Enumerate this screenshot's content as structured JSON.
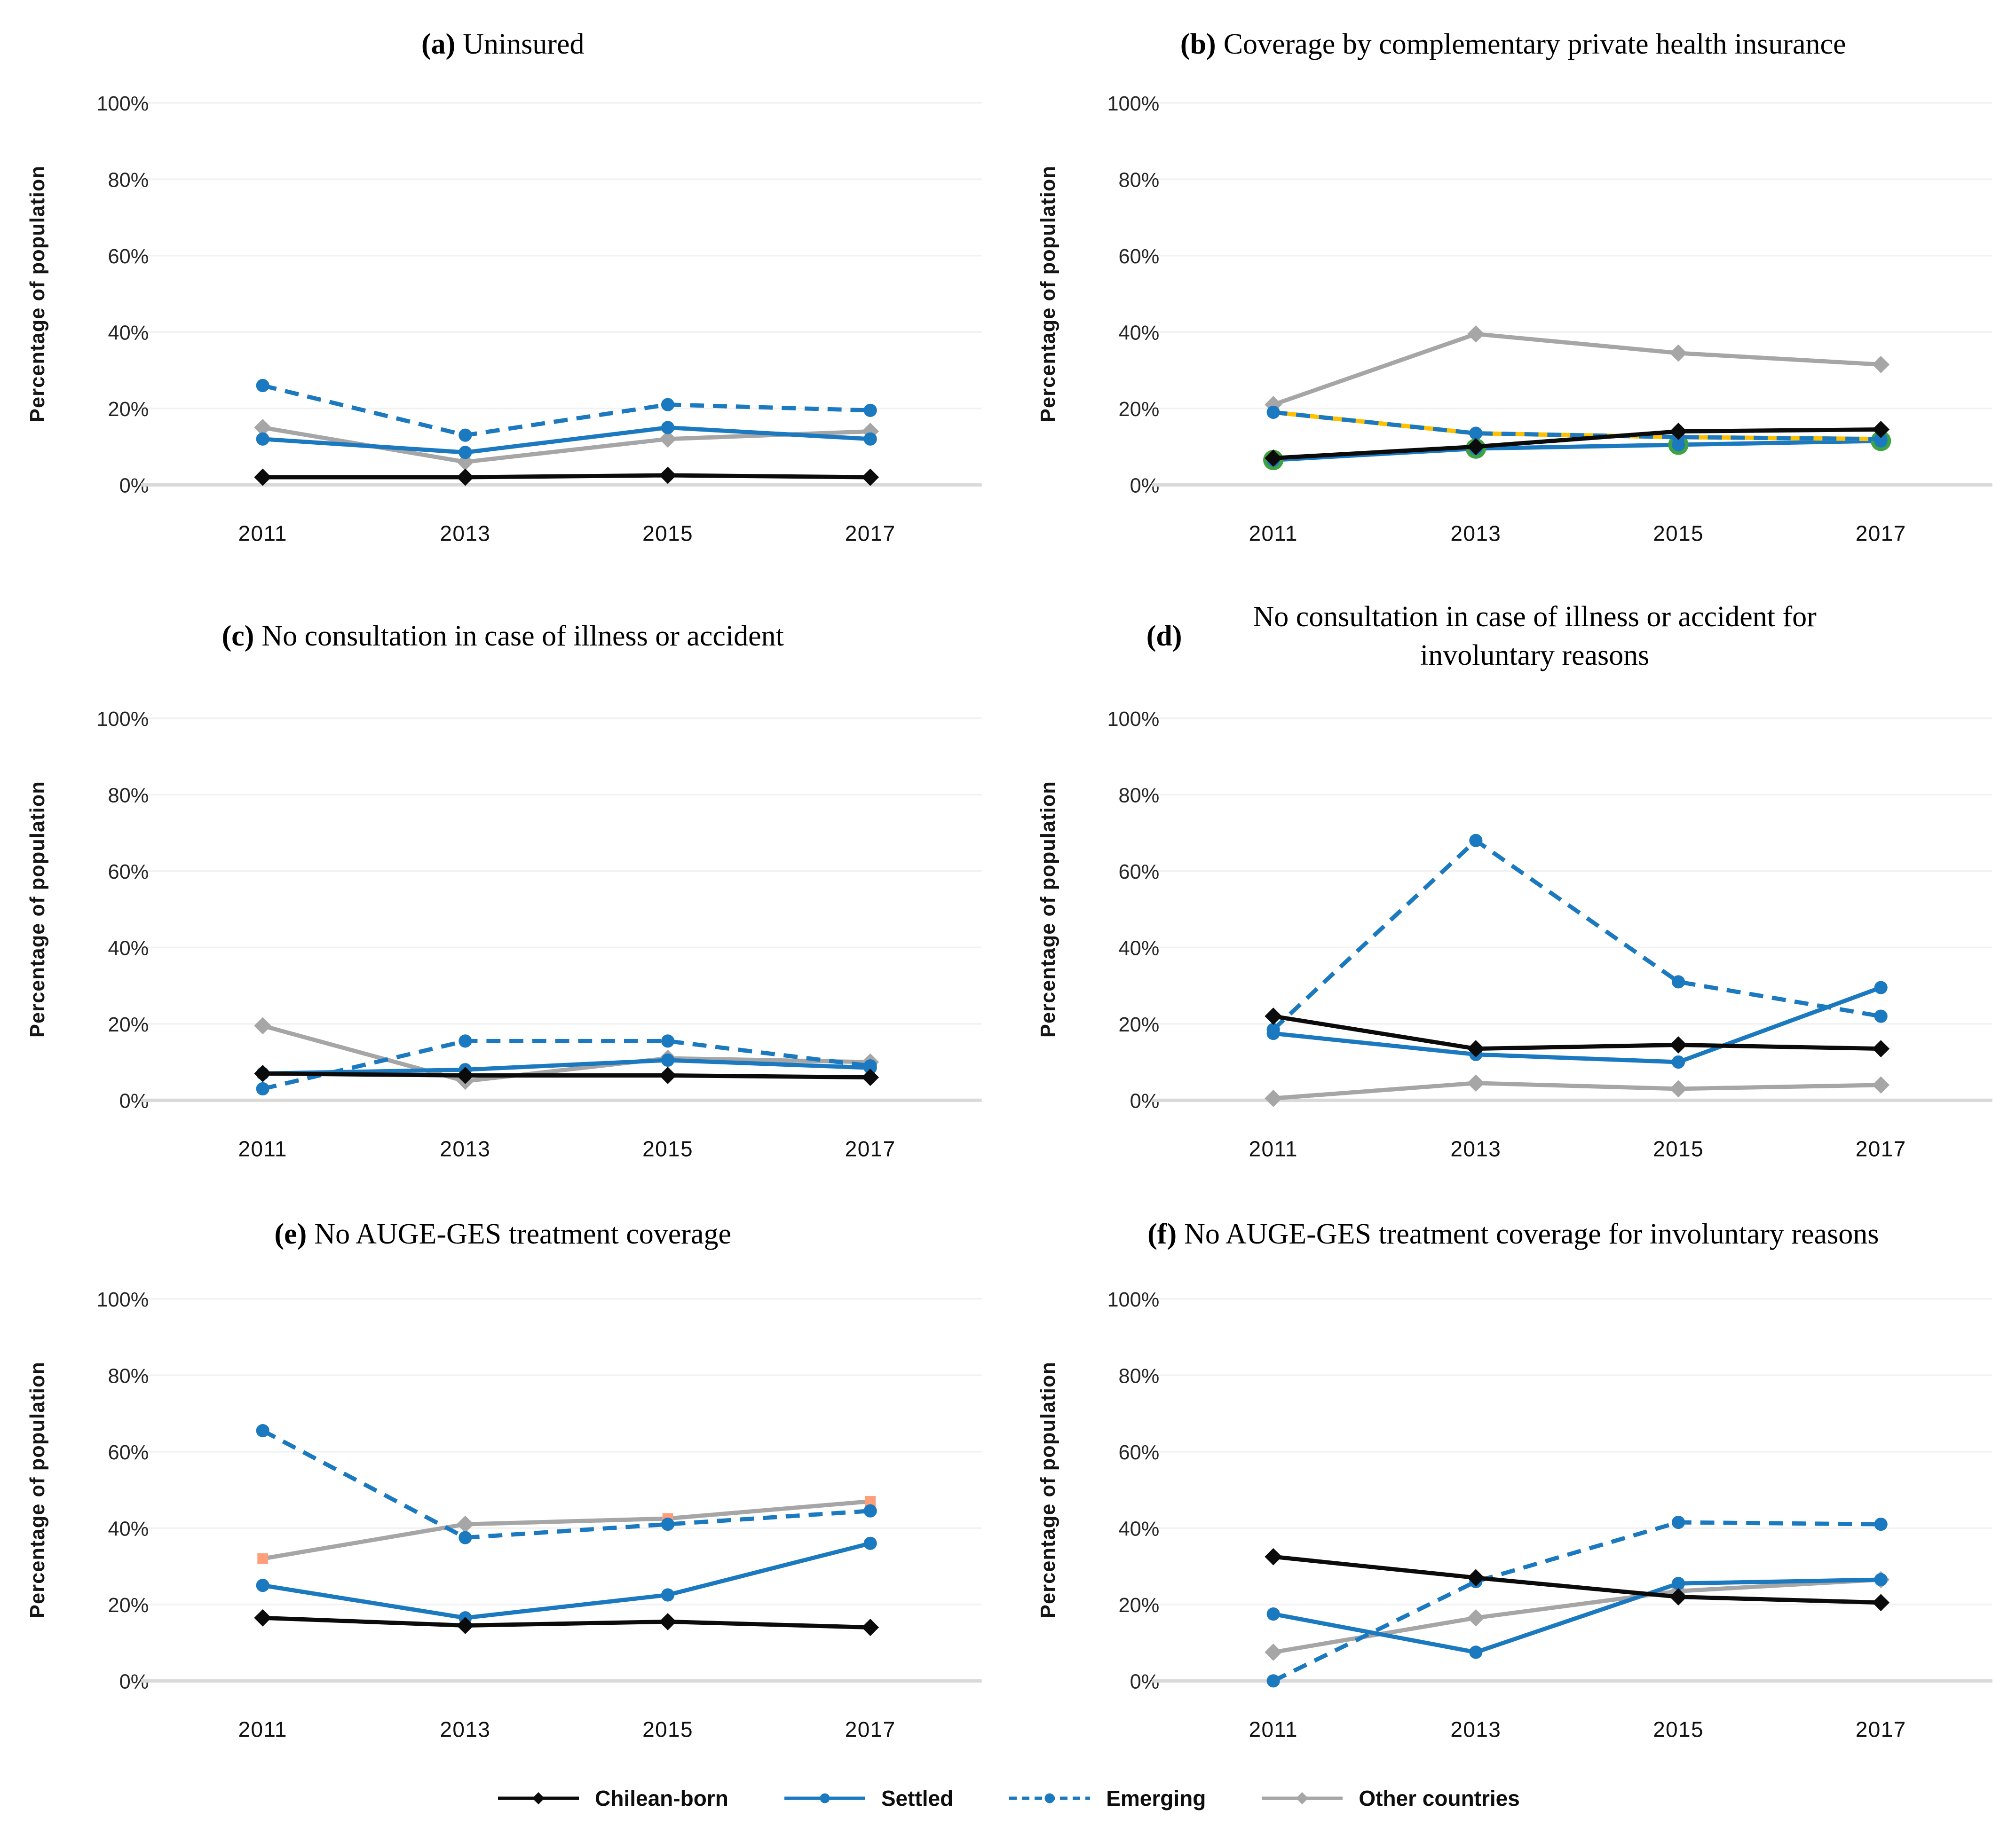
{
  "figure": {
    "description": "Six-panel line chart figure comparing health coverage indicators in Chile by migrant group, 2011-2017"
  },
  "axes": {
    "y_label": "Percentage of population",
    "y_ticks": [
      "100%",
      "80%",
      "60%",
      "40%",
      "20%",
      "0%"
    ],
    "y_tick_values": [
      100,
      80,
      60,
      40,
      20,
      0
    ],
    "x_ticks": [
      "2011",
      "2013",
      "2015",
      "2017"
    ]
  },
  "legend": {
    "items": [
      {
        "key": "chilean_born",
        "label": "Chilean-born",
        "color": "#0b0b0b",
        "line": "solid",
        "marker": "diamond"
      },
      {
        "key": "settled",
        "label": "Settled",
        "color": "#1b79c0",
        "line": "solid",
        "marker": "circle"
      },
      {
        "key": "emerging",
        "label": "Emerging",
        "color": "#1b79c0",
        "line": "dashed",
        "marker": "circle"
      },
      {
        "key": "other",
        "label": "Other countries",
        "color": "#a6a6a6",
        "line": "solid",
        "marker": "diamond"
      }
    ]
  },
  "accent_colors": {
    "blue": "#1b79c0",
    "black": "#0b0b0b",
    "gray": "#a6a6a6",
    "yellow_dash_underlay": "#ffc000",
    "green_marker_halo": "#3fa33f",
    "salmon_square_marker": "#ff9e7a",
    "axis_line": "#d9d9d9"
  },
  "chart_data": [
    {
      "id": "a",
      "letter_label": "(a)",
      "title": "Uninsured",
      "type": "line",
      "categories": [
        "2011",
        "2013",
        "2015",
        "2017"
      ],
      "ylim": [
        0,
        100
      ],
      "grid": true,
      "legend_position": "bottom-shared",
      "series": [
        {
          "key": "chilean_born",
          "name": "Chilean-born",
          "values": [
            2,
            2,
            2.5,
            2
          ]
        },
        {
          "key": "settled",
          "name": "Settled",
          "values": [
            12,
            8.5,
            15,
            12
          ]
        },
        {
          "key": "emerging",
          "name": "Emerging",
          "values": [
            26,
            13,
            21,
            19.5
          ]
        },
        {
          "key": "other",
          "name": "Other countries",
          "values": [
            15,
            6,
            12,
            14
          ]
        }
      ]
    },
    {
      "id": "b",
      "letter_label": "(b)",
      "title": "Coverage by complementary private health insurance",
      "type": "line",
      "categories": [
        "2011",
        "2013",
        "2015",
        "2017"
      ],
      "ylim": [
        0,
        100
      ],
      "grid": true,
      "legend_position": "bottom-shared",
      "series": [
        {
          "key": "chilean_born",
          "name": "Chilean-born",
          "values": [
            7,
            10,
            14,
            14.5
          ]
        },
        {
          "key": "settled",
          "name": "Settled",
          "values": [
            6.5,
            9.5,
            10.5,
            11.5
          ],
          "marker_halo_color": "#3fa33f"
        },
        {
          "key": "emerging",
          "name": "Emerging",
          "values": [
            19,
            13.5,
            12.5,
            12
          ],
          "underlay_color": "#ffc000"
        },
        {
          "key": "other",
          "name": "Other countries",
          "values": [
            21,
            39.5,
            34.5,
            31.5
          ]
        }
      ]
    },
    {
      "id": "c",
      "letter_label": "(c)",
      "title": "No consultation in case of illness or accident",
      "type": "line",
      "categories": [
        "2011",
        "2013",
        "2015",
        "2017"
      ],
      "ylim": [
        0,
        100
      ],
      "grid": true,
      "legend_position": "bottom-shared",
      "series": [
        {
          "key": "chilean_born",
          "name": "Chilean-born",
          "values": [
            7,
            6.5,
            6.5,
            6
          ]
        },
        {
          "key": "settled",
          "name": "Settled",
          "values": [
            7,
            8,
            10.5,
            8.5
          ]
        },
        {
          "key": "emerging",
          "name": "Emerging",
          "values": [
            3,
            15.5,
            15.5,
            9
          ]
        },
        {
          "key": "other",
          "name": "Other countries",
          "values": [
            19.5,
            5,
            11,
            10
          ]
        }
      ]
    },
    {
      "id": "d",
      "letter_label": "(d)",
      "title": "No consultation in case of illness or accident for involuntary reasons",
      "type": "line",
      "categories": [
        "2011",
        "2013",
        "2015",
        "2017"
      ],
      "ylim": [
        0,
        100
      ],
      "grid": true,
      "legend_position": "bottom-shared",
      "series": [
        {
          "key": "chilean_born",
          "name": "Chilean-born",
          "values": [
            22,
            13.5,
            14.5,
            13.5
          ]
        },
        {
          "key": "settled",
          "name": "Settled",
          "values": [
            17.5,
            12,
            10,
            29.5
          ]
        },
        {
          "key": "emerging",
          "name": "Emerging",
          "values": [
            18.5,
            68,
            31,
            22
          ]
        },
        {
          "key": "other",
          "name": "Other countries",
          "values": [
            0.5,
            4.5,
            3,
            4
          ]
        }
      ]
    },
    {
      "id": "e",
      "letter_label": "(e)",
      "title": "No AUGE-GES treatment coverage",
      "type": "line",
      "categories": [
        "2011",
        "2013",
        "2015",
        "2017"
      ],
      "ylim": [
        0,
        100
      ],
      "grid": true,
      "legend_position": "bottom-shared",
      "series": [
        {
          "key": "chilean_born",
          "name": "Chilean-born",
          "values": [
            16.5,
            14.5,
            15.5,
            14
          ]
        },
        {
          "key": "settled",
          "name": "Settled",
          "values": [
            25,
            16.5,
            22.5,
            36
          ]
        },
        {
          "key": "emerging",
          "name": "Emerging",
          "values": [
            65.5,
            37.5,
            41,
            44.5
          ]
        },
        {
          "key": "other",
          "name": "Other countries",
          "values": [
            32,
            41,
            42.5,
            47
          ],
          "marker": "square",
          "marker_color": "#ff9e7a",
          "marker_overrides": {
            "1": {
              "marker": "diamond",
              "marker_color": "#a6a6a6"
            }
          }
        }
      ]
    },
    {
      "id": "f",
      "letter_label": "(f)",
      "title": "No AUGE-GES treatment coverage for involuntary reasons",
      "type": "line",
      "categories": [
        "2011",
        "2013",
        "2015",
        "2017"
      ],
      "ylim": [
        0,
        100
      ],
      "grid": true,
      "legend_position": "bottom-shared",
      "series": [
        {
          "key": "chilean_born",
          "name": "Chilean-born",
          "values": [
            32.5,
            27,
            22,
            20.5
          ]
        },
        {
          "key": "settled",
          "name": "Settled",
          "values": [
            17.5,
            7.5,
            25.5,
            26.5
          ]
        },
        {
          "key": "emerging",
          "name": "Emerging",
          "values": [
            0,
            26,
            41.5,
            41
          ]
        },
        {
          "key": "other",
          "name": "Other countries",
          "values": [
            7.5,
            16.5,
            23.5,
            26.5
          ]
        }
      ]
    }
  ]
}
